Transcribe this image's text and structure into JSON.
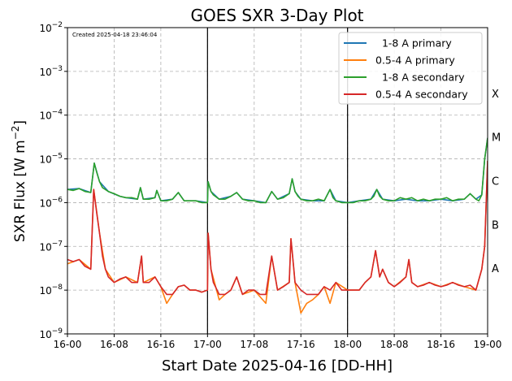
{
  "chart_data": {
    "type": "line",
    "title": "GOES SXR 3-Day Plot",
    "created_note": "Created 2025-04-18 23:46:04",
    "xlabel": "Start Date 2025-04-16 [DD-HH]",
    "ylabel_main": "SXR Flux [W m",
    "ylabel_sup": "−2",
    "ylabel_close": "]",
    "x_unit": "hours since 16-00",
    "xlim": [
      0,
      72
    ],
    "x_ticks": [
      {
        "x": 0,
        "label": "16-00"
      },
      {
        "x": 8,
        "label": "16-08"
      },
      {
        "x": 16,
        "label": "16-16"
      },
      {
        "x": 24,
        "label": "17-00"
      },
      {
        "x": 32,
        "label": "17-08"
      },
      {
        "x": 40,
        "label": "17-16"
      },
      {
        "x": 48,
        "label": "18-00"
      },
      {
        "x": 56,
        "label": "18-08"
      },
      {
        "x": 64,
        "label": "18-16"
      },
      {
        "x": 72,
        "label": "19-00"
      }
    ],
    "y_scale": "log",
    "ylim_exp": [
      -9,
      -2
    ],
    "y_ticks": [
      {
        "exp": -9,
        "label": "10",
        "sup": "−9"
      },
      {
        "exp": -8,
        "label": "10",
        "sup": "−8"
      },
      {
        "exp": -7,
        "label": "10",
        "sup": "−7"
      },
      {
        "exp": -6,
        "label": "10",
        "sup": "−6"
      },
      {
        "exp": -5,
        "label": "10",
        "sup": "−5"
      },
      {
        "exp": -4,
        "label": "10",
        "sup": "−4"
      },
      {
        "exp": -3,
        "label": "10",
        "sup": "−3"
      },
      {
        "exp": -2,
        "label": "10",
        "sup": "−2"
      }
    ],
    "flare_classes": [
      {
        "label": "A",
        "exp": -7.5
      },
      {
        "label": "B",
        "exp": -6.5
      },
      {
        "label": "C",
        "exp": -5.5
      },
      {
        "label": "M",
        "exp": -4.5
      },
      {
        "label": "X",
        "exp": -3.5
      }
    ],
    "grid": true,
    "vlines_x": [
      24,
      48
    ],
    "legend_position": "top-right",
    "series": [
      {
        "name": "  1-8 A primary",
        "color": "#1f77b4",
        "points": [
          [
            0,
            2e-06
          ],
          [
            2,
            2.1e-06
          ],
          [
            4,
            1.7e-06
          ],
          [
            4.6,
            8e-06
          ],
          [
            5.5,
            3e-06
          ],
          [
            7,
            1.8e-06
          ],
          [
            9,
            1.4e-06
          ],
          [
            10,
            1.3e-06
          ],
          [
            12,
            1.2e-06
          ],
          [
            12.5,
            2.2e-06
          ],
          [
            13,
            1.2e-06
          ],
          [
            15,
            1.3e-06
          ],
          [
            15.3,
            1.9e-06
          ],
          [
            16,
            1.1e-06
          ],
          [
            18,
            1.2e-06
          ],
          [
            19,
            1.7e-06
          ],
          [
            20,
            1.1e-06
          ],
          [
            22,
            1.1e-06
          ],
          [
            24,
            1e-06
          ],
          [
            24.1,
            3e-06
          ],
          [
            24.6,
            1.8e-06
          ],
          [
            26,
            1.2e-06
          ],
          [
            28,
            1.4e-06
          ],
          [
            29,
            1.7e-06
          ],
          [
            30,
            1.2e-06
          ],
          [
            32,
            1.1e-06
          ],
          [
            34,
            1e-06
          ],
          [
            35,
            1.8e-06
          ],
          [
            36,
            1.2e-06
          ],
          [
            38,
            1.6e-06
          ],
          [
            38.5,
            3.5e-06
          ],
          [
            39,
            1.8e-06
          ],
          [
            40,
            1.2e-06
          ],
          [
            42,
            1.1e-06
          ],
          [
            44,
            1.1e-06
          ],
          [
            45,
            2e-06
          ],
          [
            46,
            1.1e-06
          ],
          [
            48,
            1e-06
          ],
          [
            50,
            1.1e-06
          ],
          [
            52,
            1.2e-06
          ],
          [
            53,
            2e-06
          ],
          [
            54,
            1.2e-06
          ],
          [
            56,
            1.1e-06
          ],
          [
            58,
            1.2e-06
          ],
          [
            60,
            1.1e-06
          ],
          [
            62,
            1.1e-06
          ],
          [
            64,
            1.2e-06
          ],
          [
            66,
            1.1e-06
          ],
          [
            68,
            1.2e-06
          ],
          [
            69,
            1.6e-06
          ],
          [
            70,
            1.2e-06
          ],
          [
            71,
            1.5e-06
          ],
          [
            71.5,
            1e-05
          ],
          [
            72,
            3e-05
          ]
        ]
      },
      {
        "name": "0.5-4 A primary",
        "color": "#ff7f0e",
        "points": [
          [
            0,
            4e-08
          ],
          [
            2,
            5e-08
          ],
          [
            4,
            3e-08
          ],
          [
            4.5,
            2e-06
          ],
          [
            5.5,
            2e-07
          ],
          [
            6.5,
            3e-08
          ],
          [
            8,
            1.5e-08
          ],
          [
            10,
            2e-08
          ],
          [
            12,
            1.5e-08
          ],
          [
            12.7,
            6e-08
          ],
          [
            13,
            1.5e-08
          ],
          [
            15,
            2e-08
          ],
          [
            16,
            1.2e-08
          ],
          [
            17,
            5e-09
          ],
          [
            18,
            8e-09
          ],
          [
            19,
            1.2e-08
          ],
          [
            20,
            1.3e-08
          ],
          [
            21,
            1e-08
          ],
          [
            22,
            1e-08
          ],
          [
            23,
            9e-09
          ],
          [
            24,
            1e-08
          ],
          [
            24.1,
            2e-07
          ],
          [
            24.6,
            3e-08
          ],
          [
            26,
            6e-09
          ],
          [
            27,
            8e-09
          ],
          [
            28,
            1e-08
          ],
          [
            29,
            2e-08
          ],
          [
            30,
            8e-09
          ],
          [
            32,
            1e-08
          ],
          [
            34,
            5e-09
          ],
          [
            35,
            6e-08
          ],
          [
            36,
            1e-08
          ],
          [
            38,
            1.5e-08
          ],
          [
            38.3,
            1.5e-07
          ],
          [
            39,
            1.5e-08
          ],
          [
            40,
            3e-09
          ],
          [
            41,
            5e-09
          ],
          [
            42,
            6e-09
          ],
          [
            43,
            8e-09
          ],
          [
            44,
            1.2e-08
          ],
          [
            45,
            5e-09
          ],
          [
            46,
            1.5e-08
          ],
          [
            48,
            1e-08
          ],
          [
            50,
            1e-08
          ],
          [
            51,
            1.5e-08
          ],
          [
            52,
            2e-08
          ],
          [
            52.8,
            8e-08
          ],
          [
            53.5,
            2e-08
          ],
          [
            54,
            3e-08
          ],
          [
            55,
            1.5e-08
          ],
          [
            56,
            1.2e-08
          ],
          [
            58,
            2e-08
          ],
          [
            58.5,
            5e-08
          ],
          [
            59,
            1.5e-08
          ],
          [
            60,
            1.2e-08
          ],
          [
            62,
            1.5e-08
          ],
          [
            64,
            1.2e-08
          ],
          [
            66,
            1.5e-08
          ],
          [
            68,
            1.2e-08
          ],
          [
            70,
            1e-08
          ],
          [
            71,
            3e-08
          ],
          [
            71.5,
            1e-07
          ],
          [
            72,
            9e-06
          ]
        ]
      },
      {
        "name": "  1-8 A secondary",
        "color": "#2ca02c",
        "points": [
          [
            0,
            2e-06
          ],
          [
            1,
            1.9e-06
          ],
          [
            2,
            2.1e-06
          ],
          [
            3,
            1.8e-06
          ],
          [
            4,
            1.7e-06
          ],
          [
            4.6,
            8e-06
          ],
          [
            5,
            5e-06
          ],
          [
            5.5,
            3e-06
          ],
          [
            6,
            2.2e-06
          ],
          [
            7,
            1.8e-06
          ],
          [
            8,
            1.6e-06
          ],
          [
            9,
            1.4e-06
          ],
          [
            10,
            1.3e-06
          ],
          [
            11,
            1.3e-06
          ],
          [
            12,
            1.2e-06
          ],
          [
            12.5,
            2.2e-06
          ],
          [
            13,
            1.2e-06
          ],
          [
            14,
            1.2e-06
          ],
          [
            15,
            1.3e-06
          ],
          [
            15.3,
            1.9e-06
          ],
          [
            16,
            1.1e-06
          ],
          [
            17,
            1.1e-06
          ],
          [
            18,
            1.2e-06
          ],
          [
            19,
            1.7e-06
          ],
          [
            20,
            1.1e-06
          ],
          [
            21,
            1.1e-06
          ],
          [
            22,
            1.1e-06
          ],
          [
            23,
            1e-06
          ],
          [
            24,
            1e-06
          ],
          [
            24.1,
            3e-06
          ],
          [
            24.6,
            1.8e-06
          ],
          [
            25,
            1.5e-06
          ],
          [
            26,
            1.2e-06
          ],
          [
            27,
            1.2e-06
          ],
          [
            28,
            1.4e-06
          ],
          [
            29,
            1.7e-06
          ],
          [
            30,
            1.2e-06
          ],
          [
            31,
            1.1e-06
          ],
          [
            32,
            1.1e-06
          ],
          [
            33,
            1e-06
          ],
          [
            34,
            1e-06
          ],
          [
            35,
            1.8e-06
          ],
          [
            36,
            1.2e-06
          ],
          [
            37,
            1.3e-06
          ],
          [
            38,
            1.6e-06
          ],
          [
            38.5,
            3.5e-06
          ],
          [
            39,
            1.8e-06
          ],
          [
            39.5,
            1.4e-06
          ],
          [
            40,
            1.2e-06
          ],
          [
            41,
            1.1e-06
          ],
          [
            42,
            1.1e-06
          ],
          [
            43,
            1.2e-06
          ],
          [
            44,
            1.1e-06
          ],
          [
            45,
            2e-06
          ],
          [
            45.5,
            1.3e-06
          ],
          [
            46,
            1.1e-06
          ],
          [
            47,
            1e-06
          ],
          [
            48,
            1e-06
          ],
          [
            49,
            1e-06
          ],
          [
            50,
            1.1e-06
          ],
          [
            51,
            1.1e-06
          ],
          [
            52,
            1.2e-06
          ],
          [
            52.5,
            1.4e-06
          ],
          [
            53,
            2e-06
          ],
          [
            53.5,
            1.4e-06
          ],
          [
            54,
            1.2e-06
          ],
          [
            55,
            1.1e-06
          ],
          [
            56,
            1.1e-06
          ],
          [
            57,
            1.3e-06
          ],
          [
            58,
            1.2e-06
          ],
          [
            59,
            1.3e-06
          ],
          [
            60,
            1.1e-06
          ],
          [
            61,
            1.2e-06
          ],
          [
            62,
            1.1e-06
          ],
          [
            63,
            1.2e-06
          ],
          [
            64,
            1.2e-06
          ],
          [
            65,
            1.3e-06
          ],
          [
            66,
            1.1e-06
          ],
          [
            67,
            1.2e-06
          ],
          [
            68,
            1.2e-06
          ],
          [
            69,
            1.6e-06
          ],
          [
            70,
            1.2e-06
          ],
          [
            70.5,
            1.1e-06
          ],
          [
            71,
            1.5e-06
          ],
          [
            71.5,
            1e-05
          ],
          [
            72,
            3e-05
          ]
        ]
      },
      {
        "name": "0.5-4 A secondary",
        "color": "#d62728",
        "points": [
          [
            0,
            5e-08
          ],
          [
            1,
            4.5e-08
          ],
          [
            2,
            5e-08
          ],
          [
            3,
            3.5e-08
          ],
          [
            4,
            3e-08
          ],
          [
            4.5,
            2e-06
          ],
          [
            5,
            6e-07
          ],
          [
            5.5,
            2e-07
          ],
          [
            6,
            6e-08
          ],
          [
            6.5,
            3e-08
          ],
          [
            7,
            2e-08
          ],
          [
            8,
            1.5e-08
          ],
          [
            9,
            1.8e-08
          ],
          [
            10,
            2e-08
          ],
          [
            11,
            1.5e-08
          ],
          [
            12,
            1.5e-08
          ],
          [
            12.7,
            6e-08
          ],
          [
            13,
            1.5e-08
          ],
          [
            14,
            1.5e-08
          ],
          [
            15,
            2e-08
          ],
          [
            16,
            1.2e-08
          ],
          [
            17,
            8e-09
          ],
          [
            18,
            8e-09
          ],
          [
            19,
            1.2e-08
          ],
          [
            20,
            1.3e-08
          ],
          [
            21,
            1e-08
          ],
          [
            22,
            1e-08
          ],
          [
            23,
            9e-09
          ],
          [
            24,
            1e-08
          ],
          [
            24.1,
            2e-07
          ],
          [
            24.6,
            3e-08
          ],
          [
            25,
            1.5e-08
          ],
          [
            26,
            8e-09
          ],
          [
            27,
            8e-09
          ],
          [
            28,
            1e-08
          ],
          [
            29,
            2e-08
          ],
          [
            30,
            8e-09
          ],
          [
            31,
            1e-08
          ],
          [
            32,
            1e-08
          ],
          [
            33,
            8e-09
          ],
          [
            34,
            8e-09
          ],
          [
            35,
            6e-08
          ],
          [
            36,
            1e-08
          ],
          [
            37,
            1.2e-08
          ],
          [
            38,
            1.5e-08
          ],
          [
            38.3,
            1.5e-07
          ],
          [
            38.8,
            3e-08
          ],
          [
            39,
            1.5e-08
          ],
          [
            40,
            1e-08
          ],
          [
            41,
            8e-09
          ],
          [
            42,
            8e-09
          ],
          [
            43,
            8e-09
          ],
          [
            44,
            1.2e-08
          ],
          [
            45,
            1e-08
          ],
          [
            46,
            1.5e-08
          ],
          [
            47,
            1e-08
          ],
          [
            48,
            1e-08
          ],
          [
            49,
            1e-08
          ],
          [
            50,
            1e-08
          ],
          [
            51,
            1.5e-08
          ],
          [
            52,
            2e-08
          ],
          [
            52.8,
            8e-08
          ],
          [
            53.5,
            2e-08
          ],
          [
            54,
            3e-08
          ],
          [
            55,
            1.5e-08
          ],
          [
            56,
            1.2e-08
          ],
          [
            57,
            1.5e-08
          ],
          [
            58,
            2e-08
          ],
          [
            58.5,
            5e-08
          ],
          [
            59,
            1.5e-08
          ],
          [
            60,
            1.2e-08
          ],
          [
            61,
            1.3e-08
          ],
          [
            62,
            1.5e-08
          ],
          [
            63,
            1.3e-08
          ],
          [
            64,
            1.2e-08
          ],
          [
            65,
            1.3e-08
          ],
          [
            66,
            1.5e-08
          ],
          [
            67,
            1.3e-08
          ],
          [
            68,
            1.2e-08
          ],
          [
            69,
            1.3e-08
          ],
          [
            70,
            1e-08
          ],
          [
            71,
            3e-08
          ],
          [
            71.5,
            1e-07
          ],
          [
            72,
            9e-06
          ]
        ]
      }
    ]
  }
}
